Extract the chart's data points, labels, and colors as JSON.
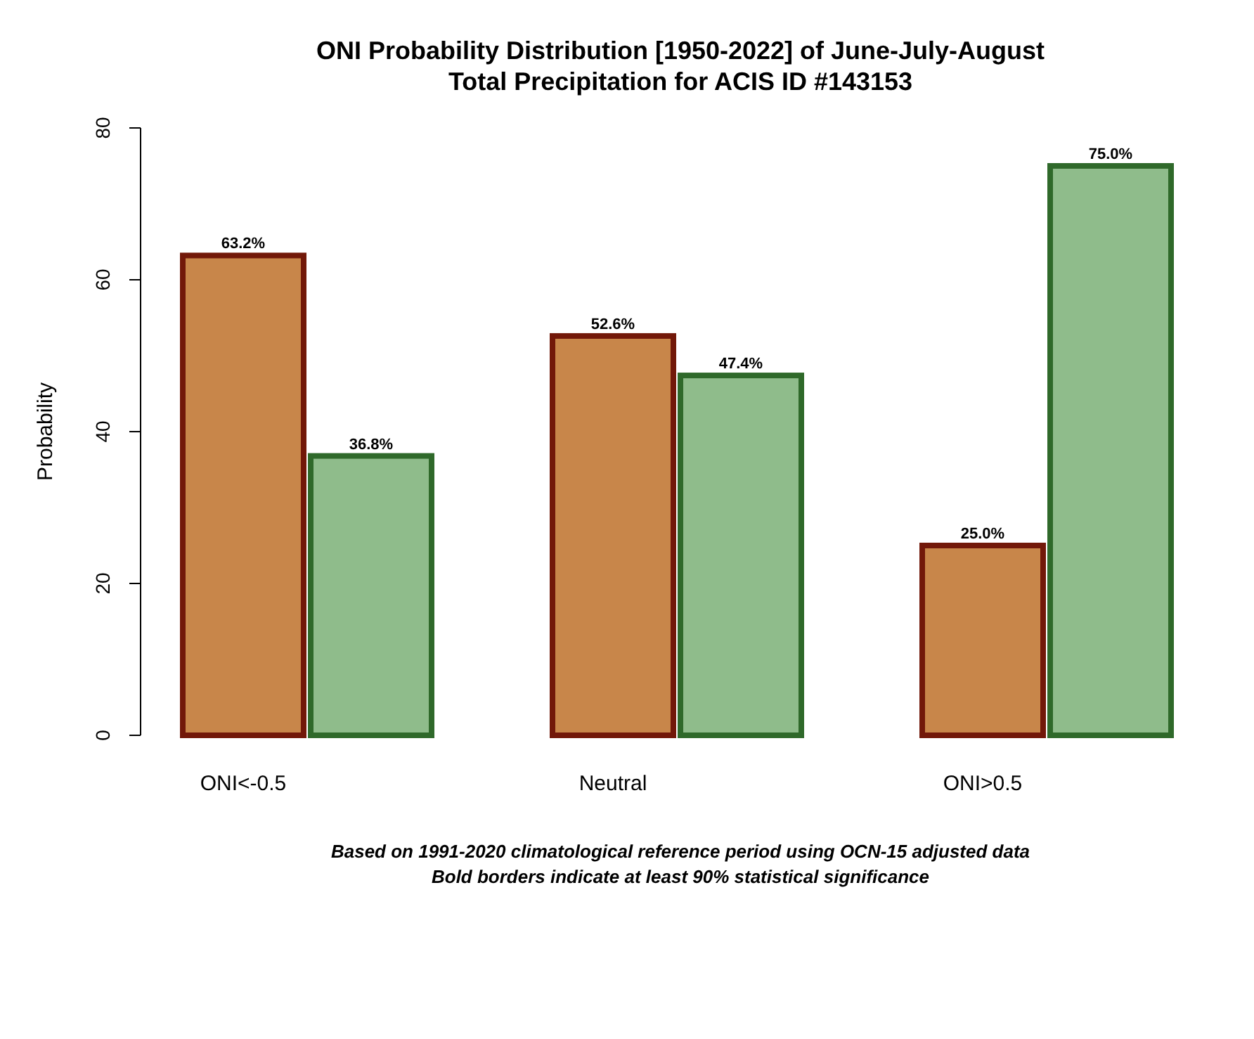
{
  "chart_data": {
    "type": "bar",
    "title": "ONI Probability Distribution [1950-2022] of June-July-August\nTotal Precipitation  for ACIS ID #143153",
    "ylabel": "Probability",
    "categories": [
      "ONI<-0.5",
      "Neutral",
      "ONI>0.5"
    ],
    "series": [
      {
        "color": "#c8864a",
        "values": [
          63.2,
          52.6,
          25.0
        ],
        "value_labels": [
          "63.2%",
          "52.6%",
          "25.0%"
        ]
      },
      {
        "color": "#8fbc8b",
        "values": [
          36.8,
          47.4,
          75.0
        ],
        "value_labels": [
          "36.8%",
          "47.4%",
          "75.0%"
        ]
      }
    ],
    "ylim": [
      0,
      80
    ],
    "yticks": [
      0,
      20,
      40,
      60,
      80
    ],
    "grid": false,
    "annotations": [
      "Based on 1991-2020 climatological reference period using OCN-15 adjusted data",
      "Bold borders indicate at least 90% statistical significance"
    ]
  }
}
